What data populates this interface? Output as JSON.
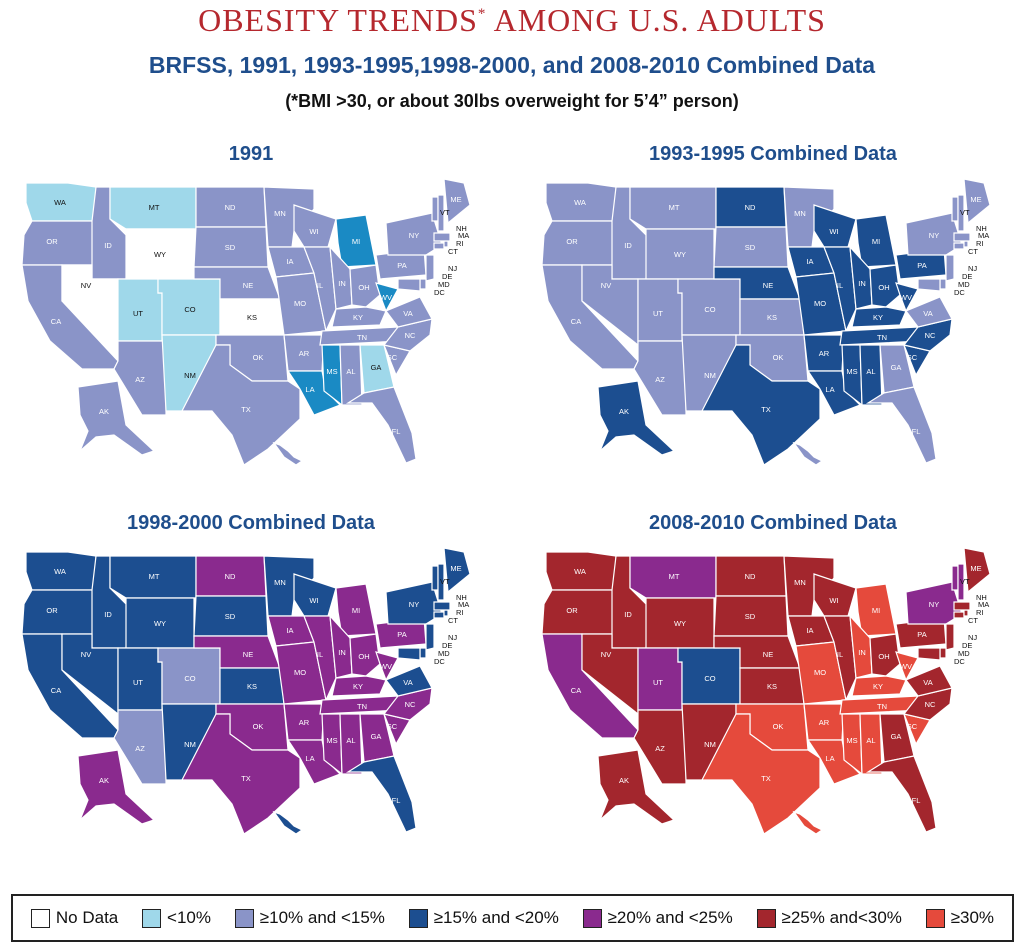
{
  "title_main": "OBESITY TRENDS",
  "title_asterisk": "*",
  "title_rest": " AMONG U.S. ADULTS",
  "subtitle": "BRFSS, 1991, 1993-1995,1998-2000, and 2008-2010 Combined Data",
  "note": "(*BMI >30, or about 30lbs overweight for 5’4” person)",
  "colors": {
    "nodata": "#ffffff",
    "lt10": "#9fd8ea",
    "10_15": "#8a94c8",
    "15_20": "#1c4e90",
    "20_25": "#8a2a8e",
    "25_30": "#a3262d",
    "gte30": "#e54a3c",
    "ms_1991": "#1a8ac4"
  },
  "legend": [
    {
      "key": "nodata",
      "label": "No Data"
    },
    {
      "key": "lt10",
      "label": "<10%"
    },
    {
      "key": "10_15",
      "label": "≥10% and <15%"
    },
    {
      "key": "15_20",
      "label": "≥15% and <20%"
    },
    {
      "key": "20_25",
      "label": "≥20% and <25%"
    },
    {
      "key": "25_30",
      "label": "≥25% and<30%"
    },
    {
      "key": "gte30",
      "label": "≥30%"
    }
  ],
  "panels": [
    {
      "title": "1991",
      "default": "10_15",
      "states": {
        "WA": "lt10",
        "MT": "lt10",
        "UT": "lt10",
        "CO": "lt10",
        "NM": "lt10",
        "GA": "lt10",
        "NV": "nodata",
        "WY": "nodata",
        "KS": "nodata",
        "MI": "ms_1991",
        "MS": "ms_1991",
        "LA": "ms_1991",
        "WV": "ms_1991"
      }
    },
    {
      "title": "1993-1995 Combined Data",
      "default": "10_15",
      "states": {
        "ND": "15_20",
        "NE": "15_20",
        "IA": "15_20",
        "MO": "15_20",
        "WI": "15_20",
        "MI": "15_20",
        "IL": "15_20",
        "IN": "15_20",
        "OH": "15_20",
        "PA": "15_20",
        "KY": "15_20",
        "WV": "15_20",
        "TN": "15_20",
        "NC": "15_20",
        "SC": "15_20",
        "AR": "15_20",
        "LA": "15_20",
        "MS": "15_20",
        "AL": "15_20",
        "TX": "15_20",
        "AK": "15_20"
      }
    },
    {
      "title": "1998-2000 Combined Data",
      "default": "15_20",
      "states": {
        "CO": "10_15",
        "AZ": "10_15",
        "ND": "20_25",
        "NE": "20_25",
        "IA": "20_25",
        "MI": "20_25",
        "IL": "20_25",
        "IN": "20_25",
        "OH": "20_25",
        "PA": "20_25",
        "MO": "20_25",
        "OK": "20_25",
        "TX": "20_25",
        "AR": "20_25",
        "LA": "20_25",
        "MS": "20_25",
        "AL": "20_25",
        "GA": "20_25",
        "SC": "20_25",
        "NC": "20_25",
        "TN": "20_25",
        "KY": "20_25",
        "WV": "20_25",
        "AK": "20_25"
      }
    },
    {
      "title": "2008-2010 Combined Data",
      "default": "25_30",
      "states": {
        "CO": "15_20",
        "CA": "20_25",
        "UT": "20_25",
        "MT": "20_25",
        "NY": "20_25",
        "VT": "20_25",
        "NH": "20_25",
        "MI": "gte30",
        "MO": "gte30",
        "OK": "gte30",
        "TX": "gte30",
        "AR": "gte30",
        "LA": "gte30",
        "MS": "gte30",
        "AL": "gte30",
        "TN": "gte30",
        "KY": "gte30",
        "WV": "gte30",
        "SC": "gte30",
        "IN": "gte30",
        "HI": "gte30"
      }
    }
  ]
}
